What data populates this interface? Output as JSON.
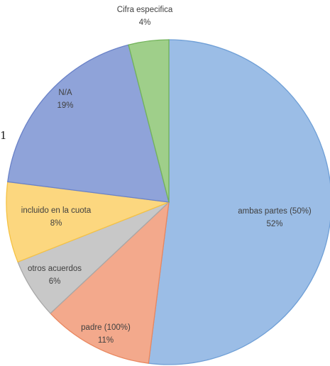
{
  "chart_data": {
    "type": "pie",
    "title": "",
    "start_angle_deg": 0,
    "direction": "clockwise",
    "slices": [
      {
        "label": "ambas partes (50%)",
        "pct_label": "52%",
        "value": 52,
        "color": "#9bbde6",
        "edge": "#6f9fd6"
      },
      {
        "label": "padre (100%)",
        "pct_label": "11%",
        "value": 11,
        "color": "#f3a98c",
        "edge": "#e9875f"
      },
      {
        "label": "otros acuerdos",
        "pct_label": "6%",
        "value": 6,
        "color": "#c8c8c8",
        "edge": "#a8a8a8"
      },
      {
        "label": "incluido en la cuota",
        "pct_label": "8%",
        "value": 8,
        "color": "#fcd77f",
        "edge": "#f5c244"
      },
      {
        "label": "N/A",
        "pct_label": "19%",
        "value": 19,
        "color": "#8fa3d9",
        "edge": "#6a82c8"
      },
      {
        "label": "Cifra especifica",
        "pct_label": "4%",
        "value": 4,
        "color": "#9fcf8a",
        "edge": "#72b35a"
      }
    ]
  },
  "stray_text": "1"
}
